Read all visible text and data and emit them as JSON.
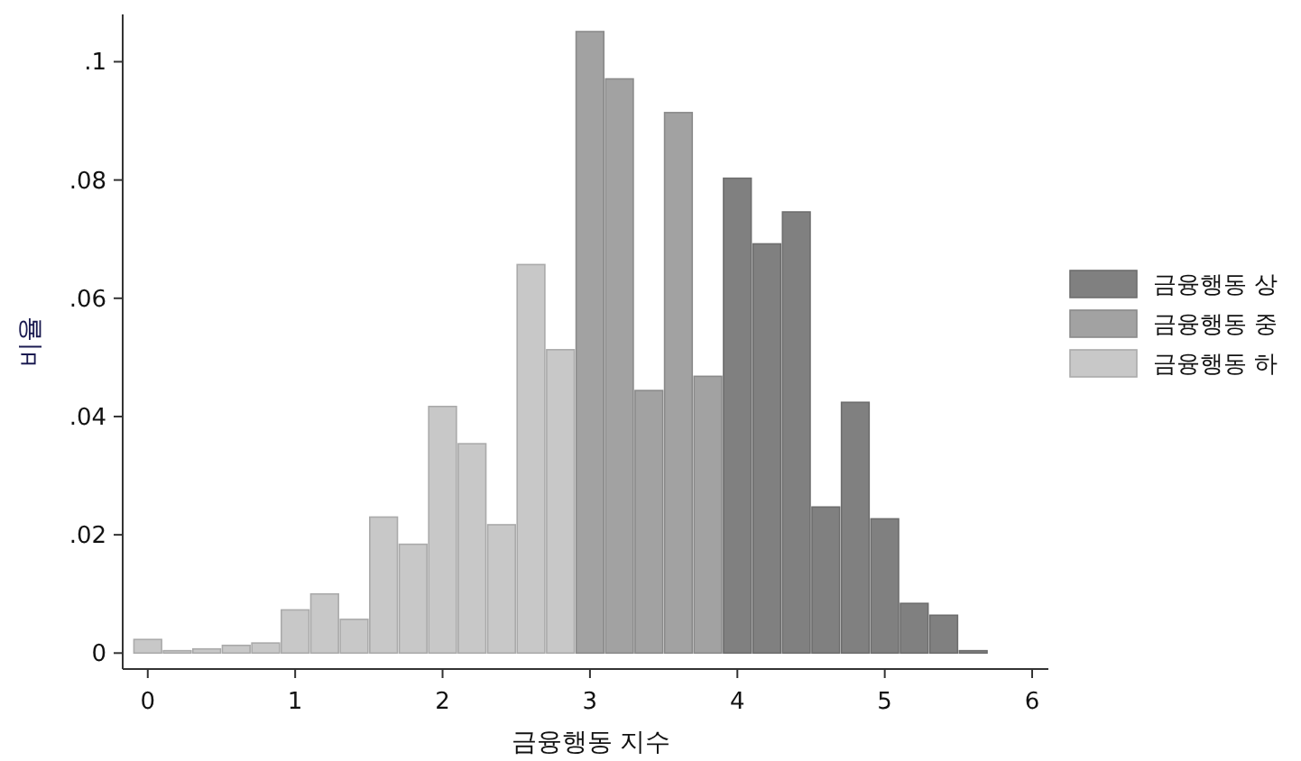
{
  "chart_data": {
    "type": "histogram",
    "xlabel": "금융행동 지수",
    "ylabel": "비율",
    "bins": [
      -0.1,
      0.1,
      0.3,
      0.5,
      0.7,
      0.9,
      1.1,
      1.3,
      1.5,
      1.7,
      1.9,
      2.1,
      2.3,
      2.5,
      2.7,
      2.9,
      3.1,
      3.3,
      3.5,
      3.7,
      3.9,
      4.1,
      4.3,
      4.5,
      4.7,
      4.9,
      5.1,
      5.3,
      5.5,
      5.7
    ],
    "series": [
      {
        "name": "금융행동 상",
        "color": "#808080",
        "values": [
          null,
          null,
          null,
          null,
          null,
          null,
          null,
          null,
          null,
          null,
          null,
          null,
          null,
          null,
          null,
          null,
          null,
          null,
          null,
          null,
          0.0803,
          0.0692,
          0.0746,
          0.0247,
          0.0424,
          0.0227,
          0.0084,
          0.0064,
          0.0004
        ]
      },
      {
        "name": "금융행동 중",
        "color": "#a2a2a2",
        "values": [
          null,
          null,
          null,
          null,
          null,
          null,
          null,
          null,
          null,
          null,
          null,
          null,
          null,
          null,
          null,
          0.1051,
          0.0971,
          0.0444,
          0.0914,
          0.0468,
          null,
          null,
          null,
          null,
          null,
          null,
          null,
          null,
          null
        ]
      },
      {
        "name": "금융행동 하",
        "color": "#c8c8c8",
        "values": [
          0.0023,
          0.0004,
          0.0007,
          0.0013,
          0.0017,
          0.0073,
          0.01,
          0.0057,
          0.023,
          0.0184,
          0.0417,
          0.0354,
          0.0217,
          0.0657,
          0.0513,
          null,
          null,
          null,
          null,
          null,
          null,
          null,
          null,
          null,
          null,
          null,
          null,
          null,
          null
        ]
      }
    ],
    "xlim": [
      -0.17,
      6.11
    ],
    "ylim": [
      -0.0027,
      0.108
    ],
    "xticks": [
      0,
      1,
      2,
      3,
      4,
      5,
      6
    ],
    "yticks": [
      0,
      {
        "value": 0.02,
        "label": ".02"
      },
      {
        "value": 0.04,
        "label": ".04"
      },
      {
        "value": 0.06,
        "label": ".06"
      },
      {
        "value": 0.08,
        "label": ".08"
      },
      {
        "value": 0.1,
        "label": ".1"
      }
    ],
    "legend": "right",
    "grid": false
  }
}
